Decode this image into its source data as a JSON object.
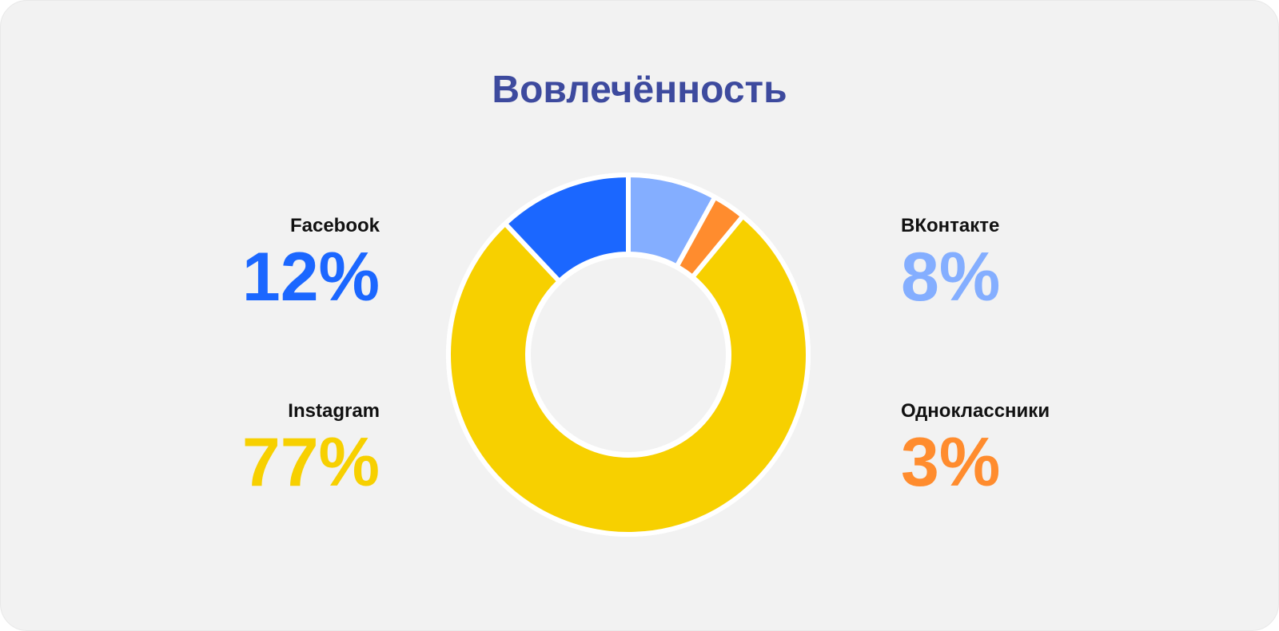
{
  "chart_data": {
    "type": "pie",
    "variant": "donut",
    "title": "Вовлечённость",
    "slices": [
      {
        "label": "ВКонтакте",
        "value": 8,
        "display": "8%",
        "color": "#84aeff"
      },
      {
        "label": "Одноклассники",
        "value": 3,
        "display": "3%",
        "color": "#ff8c2e"
      },
      {
        "label": "Instagram",
        "value": 77,
        "display": "77%",
        "color": "#f7d000"
      },
      {
        "label": "Facebook",
        "value": 12,
        "display": "12%",
        "color": "#1b67ff"
      }
    ],
    "start": "12 o'clock",
    "direction": "clockwise",
    "legend": "labels beside the chart, left and right"
  },
  "colors": {
    "background": "#f2f2f2",
    "title": "#3d4a9e",
    "slice_separator": "#ffffff"
  }
}
